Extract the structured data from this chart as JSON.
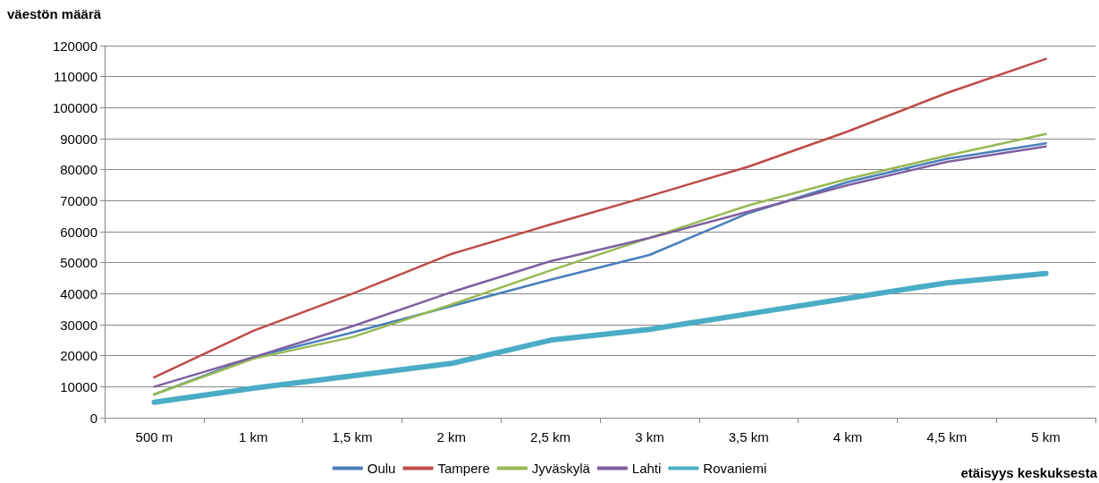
{
  "chart_data": {
    "type": "line",
    "ylabel": "väestön määrä",
    "xlabel": "etäisyys keskuksesta",
    "categories": [
      "500 m",
      "1 km",
      "1,5 km",
      "2 km",
      "2,5 km",
      "3 km",
      "3,5 km",
      "4 km",
      "4,5 km",
      "5 km"
    ],
    "series": [
      {
        "name": "Oulu",
        "color": "#4a7ebb",
        "values": [
          7500,
          19500,
          27500,
          36000,
          44500,
          52500,
          66000,
          76000,
          83500,
          88500
        ]
      },
      {
        "name": "Tampere",
        "color": "#be4b48",
        "values": [
          13000,
          28000,
          40000,
          52800,
          62300,
          71500,
          81000,
          92300,
          104700,
          115700
        ]
      },
      {
        "name": "Jyväskylä",
        "color": "#98b954",
        "values": [
          7500,
          19000,
          26000,
          36500,
          47500,
          58000,
          68500,
          77000,
          84500,
          91500
        ]
      },
      {
        "name": "Lahti",
        "color": "#7d60a0",
        "values": [
          10000,
          19500,
          29500,
          40500,
          50500,
          58000,
          66500,
          75000,
          82500,
          87500
        ]
      },
      {
        "name": "Rovaniemi",
        "color": "#4bacc6",
        "values": [
          5000,
          9500,
          13500,
          17500,
          25000,
          28500,
          33500,
          38500,
          43500,
          46500
        ]
      }
    ],
    "ylim": [
      0,
      120000
    ],
    "yticks": [
      0,
      10000,
      20000,
      30000,
      40000,
      50000,
      60000,
      70000,
      80000,
      90000,
      100000,
      110000,
      120000
    ],
    "grid": "y",
    "legend": "bottom",
    "marker": "none",
    "line_style": "solid"
  }
}
